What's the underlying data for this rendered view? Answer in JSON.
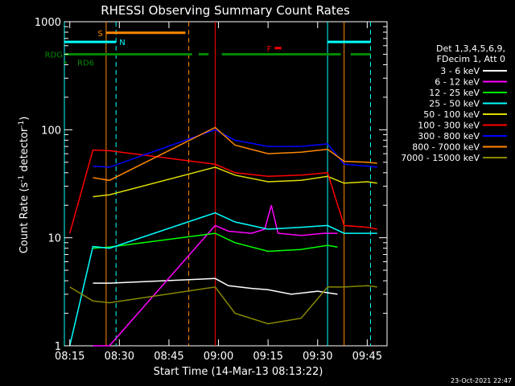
{
  "chart_data": {
    "type": "line",
    "title": "RHESSI Observing Summary Count Rates",
    "xlabel": "Start Time (14-Mar-13 08:13:22)",
    "ylabel_main": "Count Rate (s",
    "ylabel_sup1": "-1",
    "ylabel_mid": " detector",
    "ylabel_sup2": "-1",
    "ylabel_end": ")",
    "y_scale": "log",
    "ylim": [
      1,
      1000
    ],
    "xlim": [
      "08:13:22",
      "09:51:00"
    ],
    "x_ticks": [
      "08:15",
      "08:30",
      "08:45",
      "09:00",
      "09:15",
      "09:30",
      "09:45"
    ],
    "y_ticks": [
      "1",
      "10",
      "100",
      "1000"
    ],
    "timestamp": "23-Oct-2021 22:47",
    "legend_header": [
      "Det 1,3,4,5,6,9,",
      "FDecim 1, Att 0"
    ],
    "series": [
      {
        "name": "3 - 6 keV",
        "color": "#ffffff",
        "points": [
          [
            "08:22",
            3.8
          ],
          [
            "08:27",
            3.8
          ],
          [
            "08:59",
            4.2
          ],
          [
            "09:03",
            3.6
          ],
          [
            "09:10",
            3.4
          ],
          [
            "09:15",
            3.3
          ],
          [
            "09:22",
            3.0
          ],
          [
            "09:30",
            3.2
          ],
          [
            "09:36",
            3.0
          ]
        ]
      },
      {
        "name": "6 - 12 keV",
        "color": "#ff00ff",
        "points": [
          [
            "08:22",
            1.0
          ],
          [
            "08:27",
            1.0
          ],
          [
            "08:59",
            13
          ],
          [
            "09:03",
            11.5
          ],
          [
            "09:10",
            11
          ],
          [
            "09:14",
            12
          ],
          [
            "09:16",
            20
          ],
          [
            "09:18",
            11
          ],
          [
            "09:25",
            10.5
          ],
          [
            "09:32",
            11
          ],
          [
            "09:36",
            11
          ]
        ]
      },
      {
        "name": "12 - 25 keV",
        "color": "#00ff00",
        "points": [
          [
            "08:22",
            8.0
          ],
          [
            "08:27",
            8.2
          ],
          [
            "08:59",
            11
          ],
          [
            "09:05",
            9.0
          ],
          [
            "09:15",
            7.5
          ],
          [
            "09:25",
            7.8
          ],
          [
            "09:33",
            8.5
          ],
          [
            "09:36",
            8.2
          ]
        ]
      },
      {
        "name": "25 - 50 keV",
        "color": "#00ffff",
        "points": [
          [
            "08:15",
            1.0
          ],
          [
            "08:22",
            8.3
          ],
          [
            "08:27",
            8.0
          ],
          [
            "08:59",
            17
          ],
          [
            "09:05",
            14
          ],
          [
            "09:15",
            12
          ],
          [
            "09:25",
            12.5
          ],
          [
            "09:33",
            13
          ],
          [
            "09:38",
            11
          ],
          [
            "09:45",
            11
          ],
          [
            "09:48",
            11
          ]
        ]
      },
      {
        "name": "50 - 100 keV",
        "color": "#dddd00",
        "points": [
          [
            "08:22",
            24
          ],
          [
            "08:27",
            25
          ],
          [
            "08:59",
            45
          ],
          [
            "09:05",
            38
          ],
          [
            "09:15",
            33
          ],
          [
            "09:25",
            34
          ],
          [
            "09:33",
            37
          ],
          [
            "09:38",
            32
          ],
          [
            "09:45",
            33
          ],
          [
            "09:48",
            32
          ]
        ]
      },
      {
        "name": "100 - 300 keV",
        "color": "#ff0000",
        "points": [
          [
            "08:15",
            11
          ],
          [
            "08:22",
            65
          ],
          [
            "08:27",
            64
          ],
          [
            "08:59",
            48
          ],
          [
            "09:05",
            40
          ],
          [
            "09:15",
            37
          ],
          [
            "09:25",
            38
          ],
          [
            "09:33",
            40
          ],
          [
            "09:38",
            13
          ],
          [
            "09:45",
            12.5
          ],
          [
            "09:48",
            12
          ]
        ]
      },
      {
        "name": "300 - 800 keV",
        "color": "#0000ff",
        "points": [
          [
            "08:22",
            46
          ],
          [
            "08:27",
            45
          ],
          [
            "08:59",
            100
          ],
          [
            "09:05",
            80
          ],
          [
            "09:15",
            70
          ],
          [
            "09:25",
            70
          ],
          [
            "09:33",
            74
          ],
          [
            "09:38",
            48
          ],
          [
            "09:45",
            46
          ],
          [
            "09:48",
            45
          ]
        ]
      },
      {
        "name": "800 - 7000 keV",
        "color": "#ff8800",
        "points": [
          [
            "08:22",
            36
          ],
          [
            "08:27",
            34
          ],
          [
            "08:59",
            105
          ],
          [
            "09:05",
            72
          ],
          [
            "09:15",
            60
          ],
          [
            "09:25",
            62
          ],
          [
            "09:33",
            66
          ],
          [
            "09:38",
            51
          ],
          [
            "09:45",
            50
          ],
          [
            "09:48",
            49
          ]
        ]
      },
      {
        "name": "7000 - 15000 keV",
        "color": "#888800",
        "points": [
          [
            "08:15",
            3.5
          ],
          [
            "08:22",
            2.6
          ],
          [
            "08:27",
            2.5
          ],
          [
            "08:59",
            3.5
          ],
          [
            "09:05",
            2.0
          ],
          [
            "09:15",
            1.6
          ],
          [
            "09:25",
            1.8
          ],
          [
            "09:33",
            3.5
          ],
          [
            "09:38",
            3.5
          ],
          [
            "09:45",
            3.6
          ],
          [
            "09:48",
            3.5
          ]
        ]
      }
    ],
    "status_bars": [
      {
        "name": "S",
        "color": "#ff8800",
        "level": 790,
        "segments": [
          [
            "08:26",
            "08:50"
          ]
        ]
      },
      {
        "name": "N",
        "color": "#00ffff",
        "level": 650,
        "segments": [
          [
            "08:13:22",
            "08:29"
          ],
          [
            "09:33",
            "09:46"
          ]
        ]
      },
      {
        "name": "F",
        "color": "#ff0000",
        "level": 570,
        "segments": [
          [
            "09:17",
            "09:19"
          ]
        ]
      },
      {
        "name": "RDG",
        "color": "#008800",
        "level": 500,
        "segments": [
          [
            "08:13:22",
            "08:52"
          ],
          [
            "08:54",
            "08:57"
          ],
          [
            "09:01",
            "09:37"
          ],
          [
            "09:40",
            "09:46"
          ]
        ]
      },
      {
        "name": "RD6",
        "color": "#008800",
        "level": 420,
        "segments": [
          [
            "08:13:22",
            "08:14"
          ]
        ]
      }
    ],
    "orbit_lines": [
      {
        "color": "#00ffff",
        "style": "solid",
        "time": "08:13:22"
      },
      {
        "color": "#ff8800",
        "style": "solid",
        "time": "08:26"
      },
      {
        "color": "#00ffff",
        "style": "dashed",
        "time": "08:29"
      },
      {
        "color": "#ff8800",
        "style": "dashed",
        "time": "08:51"
      },
      {
        "color": "#ff0000",
        "style": "solid",
        "time": "08:59"
      },
      {
        "color": "#00ffff",
        "style": "solid",
        "time": "09:33"
      },
      {
        "color": "#ff8800",
        "style": "solid",
        "time": "09:38"
      },
      {
        "color": "#00ffff",
        "style": "dashed",
        "time": "09:46"
      }
    ]
  }
}
